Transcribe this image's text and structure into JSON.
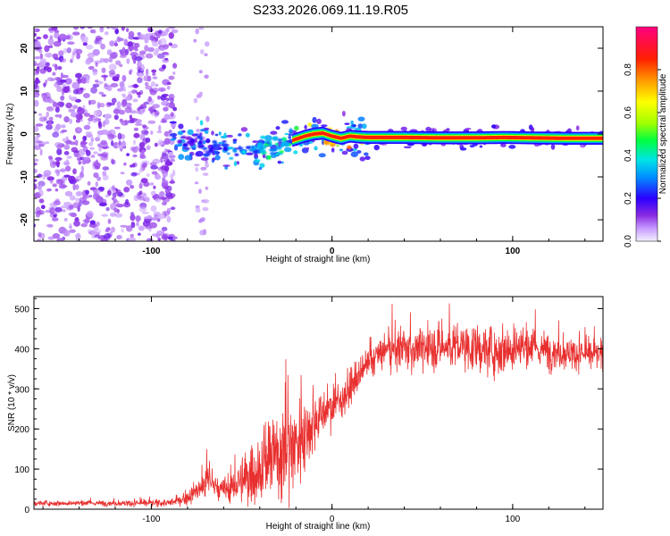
{
  "chart_data": [
    {
      "type": "heatmap",
      "title": "S233.2026.069.11.19.R05",
      "xlabel": "Height of straight line (km)",
      "ylabel": "Frequency (Hz)",
      "xlim": [
        -165,
        150
      ],
      "ylim": [
        -25,
        25
      ],
      "x_ticks": [
        -100,
        0,
        100
      ],
      "x_tick_labels": [
        "-100",
        "0",
        "100"
      ],
      "y_ticks": [
        -20,
        -10,
        0,
        10,
        20
      ],
      "y_tick_labels": [
        "-20",
        "-10",
        "0",
        "10",
        "20"
      ],
      "colorbar": {
        "label": "Normalized spectral amplitude",
        "range": [
          0,
          1
        ],
        "ticks": [
          0.0,
          0.2,
          0.4,
          0.6,
          0.8
        ],
        "tick_labels": [
          "0.0",
          "0.2",
          "0.4",
          "0.6",
          "0.8"
        ]
      },
      "signal_trace": {
        "description": "Narrow tone near 0 Hz emerging above ~ -85 km",
        "x": [
          -85,
          -70,
          -55,
          -45,
          -38,
          -30,
          -22,
          -15,
          -10,
          -5,
          0,
          5,
          10,
          15,
          20,
          40,
          60,
          80,
          95,
          110,
          130,
          150
        ],
        "frequency": [
          -1.5,
          -2.5,
          -3.5,
          -4.0,
          -3.0,
          -2.5,
          -1.5,
          -0.5,
          0.0,
          0.2,
          -0.5,
          -1.0,
          -0.5,
          -0.7,
          -0.8,
          -0.8,
          -0.9,
          -0.9,
          -0.8,
          -0.9,
          -1.0,
          -1.0
        ],
        "amplitude": [
          0.2,
          0.3,
          0.35,
          0.4,
          0.45,
          0.5,
          0.55,
          0.7,
          0.75,
          0.8,
          0.85,
          0.88,
          0.9,
          0.92,
          0.93,
          0.95,
          0.95,
          0.95,
          0.95,
          0.95,
          0.95,
          0.95
        ]
      }
    },
    {
      "type": "line",
      "title": "",
      "xlabel": "Height of straight line (km)",
      "ylabel": "SNR (10 * v/v)",
      "xlim": [
        -165,
        150
      ],
      "ylim": [
        0,
        530
      ],
      "x_ticks": [
        -100,
        0,
        100
      ],
      "x_tick_labels": [
        "-100",
        "0",
        "100"
      ],
      "y_ticks": [
        0,
        100,
        200,
        300,
        400,
        500
      ],
      "y_tick_labels": [
        "0",
        "100",
        "200",
        "300",
        "400",
        "500"
      ],
      "series": [
        {
          "name": "SNR",
          "color": "#e8302f",
          "x": [
            -165,
            -140,
            -120,
            -100,
            -90,
            -85,
            -80,
            -75,
            -70,
            -68,
            -66,
            -62,
            -55,
            -50,
            -45,
            -40,
            -35,
            -30,
            -25,
            -20,
            -15,
            -10,
            -5,
            0,
            5,
            10,
            15,
            20,
            25,
            30,
            40,
            50,
            60,
            70,
            80,
            90,
            100,
            110,
            120,
            130,
            140,
            150
          ],
          "mean": [
            15,
            15,
            15,
            15,
            16,
            20,
            30,
            45,
            60,
            90,
            60,
            45,
            55,
            70,
            85,
            100,
            120,
            140,
            150,
            165,
            190,
            220,
            240,
            255,
            275,
            300,
            330,
            360,
            385,
            395,
            400,
            400,
            405,
            405,
            400,
            395,
            405,
            400,
            395,
            390,
            385,
            385
          ],
          "noise": [
            6,
            6,
            6,
            7,
            8,
            10,
            15,
            25,
            35,
            50,
            30,
            25,
            35,
            50,
            65,
            80,
            90,
            110,
            120,
            110,
            80,
            60,
            50,
            40,
            40,
            40,
            35,
            35,
            35,
            40,
            45,
            45,
            50,
            50,
            50,
            55,
            60,
            45,
            40,
            35,
            30,
            30
          ]
        }
      ]
    }
  ]
}
